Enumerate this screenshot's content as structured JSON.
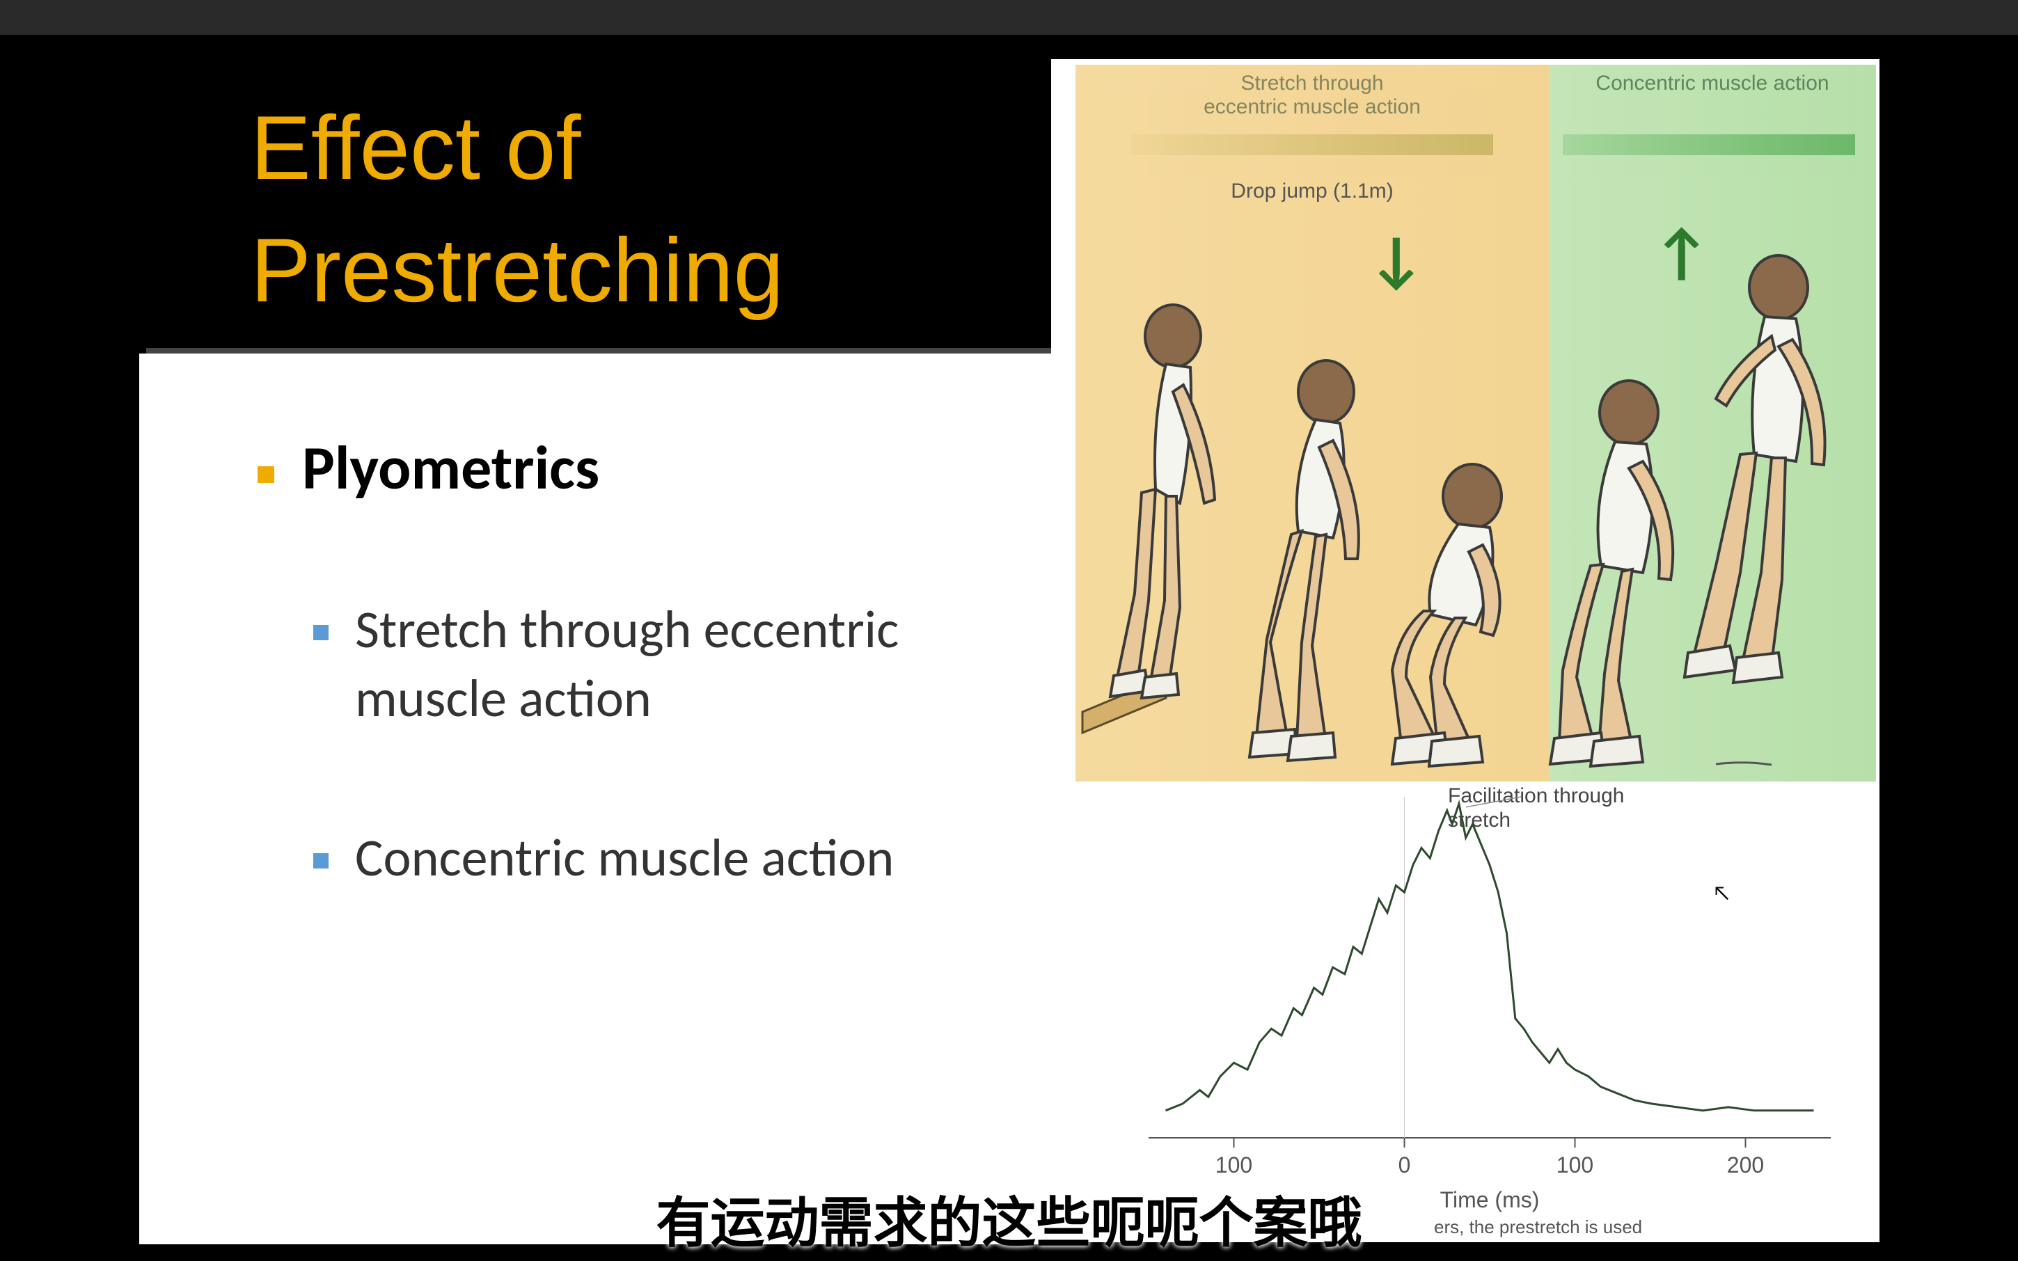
{
  "title_line1": "Effect of",
  "title_line2": "Prestretching",
  "bullets": {
    "main": "Plyometrics",
    "sub1": "Stretch through eccentric muscle action",
    "sub2": "Concentric muscle action"
  },
  "colors": {
    "title": "#f0ab00",
    "main_bullet_marker": "#f0ab00",
    "sub_bullet_marker": "#5b9bd5",
    "eccentric_zone": "#f0cb7a",
    "concentric_zone": "#a7d996",
    "arrow": "#2d7a2d",
    "chart_line": "#2d4a2d"
  },
  "illustration": {
    "eccentric_label": "Stretch through\neccentric muscle action",
    "concentric_label": "Concentric muscle action",
    "drop_label": "Drop jump (1.1m)",
    "arrow_down": "↓",
    "arrow_up": "↑"
  },
  "chart": {
    "type": "line",
    "xlabel": "Time (ms)",
    "xlim": [
      -150,
      250
    ],
    "ylim": [
      0,
      100
    ],
    "xticks": [
      -100,
      0,
      100,
      200
    ],
    "xtick_labels": [
      "100",
      "0",
      "100",
      "200"
    ],
    "facilitation_label": "Facilitation through\nstretch",
    "line_color": "#2d4a2d",
    "line_width": 3,
    "points": [
      [
        -140,
        8
      ],
      [
        -130,
        10
      ],
      [
        -120,
        14
      ],
      [
        -115,
        12
      ],
      [
        -108,
        18
      ],
      [
        -100,
        22
      ],
      [
        -92,
        20
      ],
      [
        -85,
        28
      ],
      [
        -78,
        32
      ],
      [
        -72,
        30
      ],
      [
        -65,
        38
      ],
      [
        -60,
        36
      ],
      [
        -53,
        44
      ],
      [
        -48,
        42
      ],
      [
        -42,
        50
      ],
      [
        -35,
        48
      ],
      [
        -30,
        56
      ],
      [
        -25,
        54
      ],
      [
        -20,
        62
      ],
      [
        -15,
        70
      ],
      [
        -10,
        66
      ],
      [
        -5,
        74
      ],
      [
        0,
        72
      ],
      [
        5,
        80
      ],
      [
        10,
        85
      ],
      [
        15,
        82
      ],
      [
        20,
        90
      ],
      [
        25,
        96
      ],
      [
        28,
        92
      ],
      [
        32,
        98
      ],
      [
        36,
        88
      ],
      [
        40,
        92
      ],
      [
        45,
        86
      ],
      [
        50,
        80
      ],
      [
        55,
        72
      ],
      [
        60,
        60
      ],
      [
        65,
        35
      ],
      [
        70,
        32
      ],
      [
        75,
        28
      ],
      [
        80,
        25
      ],
      [
        85,
        22
      ],
      [
        90,
        26
      ],
      [
        95,
        22
      ],
      [
        100,
        20
      ],
      [
        108,
        18
      ],
      [
        115,
        15
      ],
      [
        125,
        13
      ],
      [
        135,
        11
      ],
      [
        145,
        10
      ],
      [
        160,
        9
      ],
      [
        175,
        8
      ],
      [
        190,
        9
      ],
      [
        205,
        8
      ],
      [
        220,
        8
      ],
      [
        240,
        8
      ]
    ]
  },
  "caption_fragment": "ers, the prestretch is used",
  "subtitle_cn": "有运动需求的这些呃呃个案哦"
}
